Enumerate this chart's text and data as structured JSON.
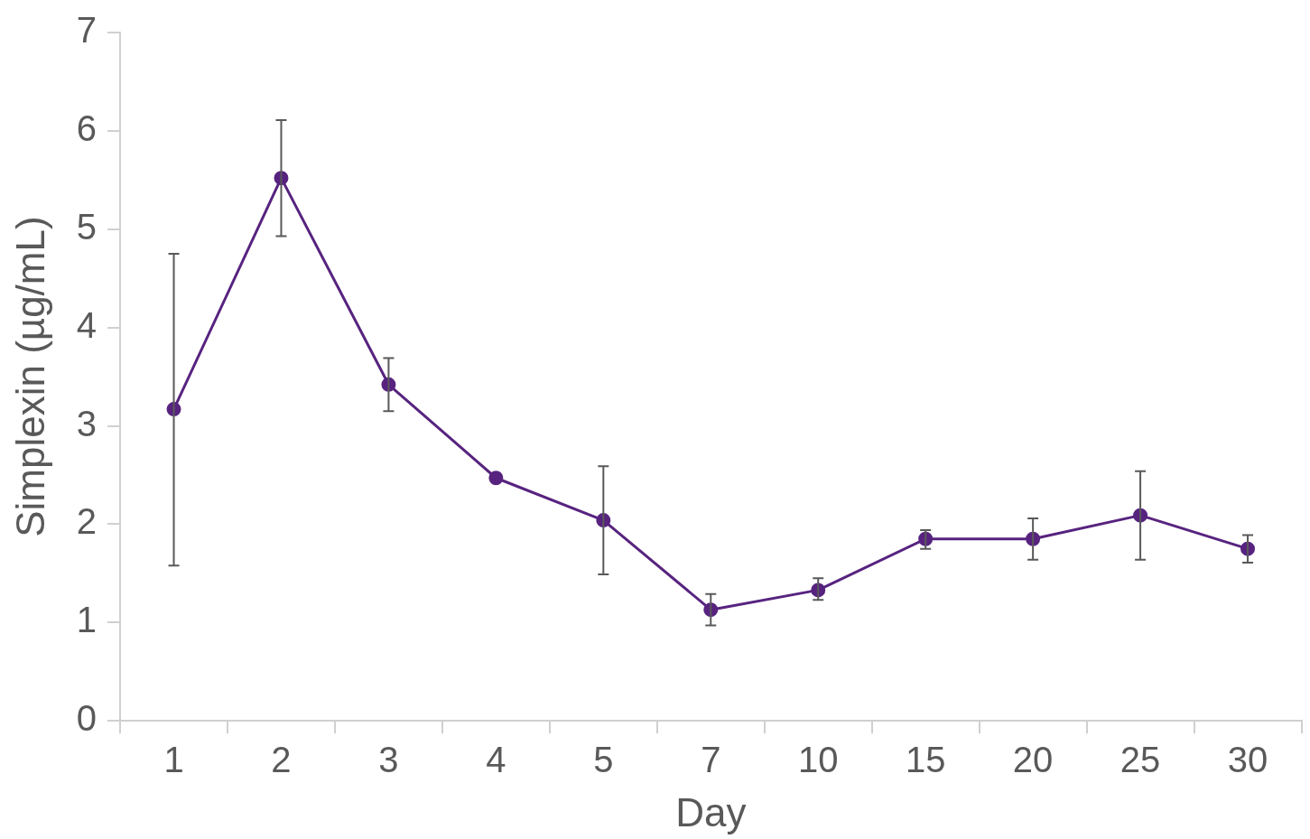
{
  "chart_data": {
    "type": "line",
    "xlabel": "Day",
    "ylabel": "Simplexin (µg/mL)",
    "categories": [
      "1",
      "2",
      "3",
      "4",
      "5",
      "7",
      "10",
      "15",
      "20",
      "25",
      "30"
    ],
    "series": [
      {
        "color": "#57237f",
        "values": [
          3.17,
          5.52,
          3.42,
          2.47,
          2.04,
          1.13,
          1.33,
          1.85,
          1.85,
          2.09,
          1.75
        ],
        "errors": [
          [
            1.58,
            4.75
          ],
          [
            4.93,
            6.11
          ],
          [
            3.15,
            3.69
          ],
          null,
          [
            1.49,
            2.59
          ],
          [
            0.97,
            1.29
          ],
          [
            1.23,
            1.45
          ],
          [
            1.75,
            1.94
          ],
          [
            1.64,
            2.06
          ],
          [
            1.64,
            2.54
          ],
          [
            1.61,
            1.89
          ]
        ]
      }
    ],
    "ylim": [
      0,
      7
    ],
    "yticks": [
      0,
      1,
      2,
      3,
      4,
      5,
      6,
      7
    ],
    "grid": false,
    "legend": false,
    "marker": "circle",
    "line_style": "solid"
  }
}
